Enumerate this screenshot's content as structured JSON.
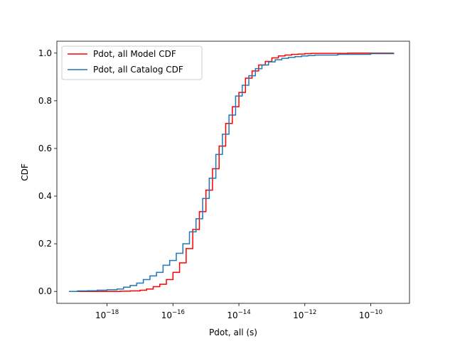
{
  "chart_data": {
    "type": "line",
    "title": "",
    "xlabel": "Pdot, all (s)",
    "ylabel": "CDF",
    "xscale": "log",
    "xlim": [
      3e-20,
      1.5e-09
    ],
    "ylim": [
      -0.05,
      1.05
    ],
    "xticks": [
      {
        "base": "10",
        "exp": "−18",
        "value": 1e-18
      },
      {
        "base": "10",
        "exp": "−16",
        "value": 1e-16
      },
      {
        "base": "10",
        "exp": "−14",
        "value": 1e-14
      },
      {
        "base": "10",
        "exp": "−12",
        "value": 1e-12
      },
      {
        "base": "10",
        "exp": "−10",
        "value": 1e-10
      }
    ],
    "yticks": [
      "0.0",
      "0.2",
      "0.4",
      "0.6",
      "0.8",
      "1.0"
    ],
    "grid": false,
    "legend_position": "top-left",
    "series": [
      {
        "name": "Pdot, all Model CDF",
        "color": "#ff0000",
        "x": [
          7e-20,
          1.26e-18,
          2.51e-18,
          5.01e-18,
          1e-17,
          1.58e-17,
          2.51e-17,
          3.98e-17,
          6.31e-17,
          1e-16,
          1.58e-16,
          2.51e-16,
          3.98e-16,
          6.31e-16,
          1e-15,
          1.58e-15,
          2.51e-15,
          3.98e-15,
          6.31e-15,
          1e-14,
          1.58e-14,
          2.51e-14,
          3.98e-14,
          6.31e-14,
          1e-13,
          1.58e-13,
          2.51e-13,
          3.98e-13,
          6.31e-13,
          1e-12,
          1.58e-12,
          2e-11,
          5e-10
        ],
        "y": [
          0.0,
          0.0,
          0.001,
          0.002,
          0.005,
          0.01,
          0.02,
          0.03,
          0.05,
          0.08,
          0.12,
          0.18,
          0.26,
          0.335,
          0.425,
          0.515,
          0.61,
          0.705,
          0.775,
          0.835,
          0.895,
          0.925,
          0.95,
          0.965,
          0.98,
          0.988,
          0.992,
          0.995,
          0.996,
          0.998,
          0.999,
          1.0,
          1.0
        ]
      },
      {
        "name": "Pdot, all Catalog CDF",
        "color": "#1f77b4",
        "x": [
          7e-20,
          1.26e-19,
          2.5e-19,
          5e-19,
          1e-18,
          2e-18,
          3.16e-18,
          5e-18,
          7.94e-18,
          1.26e-17,
          2e-17,
          3.16e-17,
          5e-17,
          7.94e-17,
          1.26e-16,
          2e-16,
          3.16e-16,
          5e-16,
          7.94e-16,
          1.26e-15,
          2e-15,
          3.16e-15,
          5e-15,
          7.94e-15,
          1.26e-14,
          2e-14,
          3.16e-14,
          5e-14,
          7.94e-14,
          1.26e-13,
          2e-13,
          3.16e-13,
          5e-13,
          7.94e-13,
          1.26e-12,
          2e-12,
          1e-11,
          1e-10,
          5e-10
        ],
        "y": [
          0.0,
          0.002,
          0.003,
          0.005,
          0.007,
          0.01,
          0.018,
          0.025,
          0.035,
          0.05,
          0.065,
          0.08,
          0.11,
          0.13,
          0.16,
          0.2,
          0.25,
          0.305,
          0.39,
          0.475,
          0.575,
          0.66,
          0.74,
          0.82,
          0.865,
          0.905,
          0.935,
          0.95,
          0.963,
          0.972,
          0.978,
          0.982,
          0.985,
          0.988,
          0.99,
          0.992,
          0.995,
          0.998,
          1.0
        ]
      }
    ]
  }
}
